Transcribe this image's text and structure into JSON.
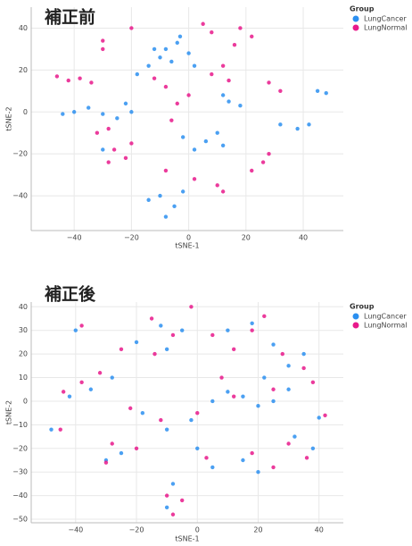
{
  "chart_data": [
    {
      "type": "scatter",
      "title": "補正前",
      "xlabel": "tSNE-1",
      "ylabel": "tSNE-2",
      "legend_title": "Group",
      "grid": true,
      "xlim": [
        -55,
        54
      ],
      "ylim": [
        -56.6,
        50
      ],
      "xticks": [
        {
          "value": -40,
          "label": "−40"
        },
        {
          "value": -20,
          "label": "−20"
        },
        0,
        20,
        40
      ],
      "yticks": [
        {
          "value": -40,
          "label": "−40"
        },
        {
          "value": -20,
          "label": "−20"
        },
        0,
        20,
        40
      ],
      "series": [
        {
          "name": "LungCancer",
          "color": "#2b8ff0",
          "x": [
            -8,
            -4,
            0,
            -10,
            -6,
            2,
            -14,
            -3,
            -18,
            -12,
            -40,
            -35,
            -44,
            -30,
            -25,
            -20,
            -22,
            14,
            18,
            12,
            10,
            6,
            2,
            12,
            -2,
            -10,
            -5,
            -8,
            -14,
            -2,
            32,
            38,
            42,
            45,
            48,
            -30
          ],
          "y": [
            30,
            33,
            28,
            26,
            24,
            22,
            22,
            36,
            18,
            30,
            0,
            2,
            -1,
            -1,
            -3,
            0,
            4,
            5,
            3,
            8,
            -10,
            -14,
            -18,
            -16,
            -12,
            -40,
            -45,
            -50,
            -42,
            -38,
            -6,
            -8,
            -6,
            10,
            9,
            -18
          ]
        },
        {
          "name": "LungNormal",
          "color": "#e8198b",
          "x": [
            -46,
            -42,
            -38,
            -34,
            -26,
            -22,
            -28,
            -20,
            5,
            8,
            18,
            22,
            16,
            8,
            12,
            14,
            -12,
            -8,
            0,
            -4,
            -6,
            -32,
            -28,
            28,
            32,
            26,
            22,
            28,
            10,
            12,
            -20,
            -30,
            -30,
            2,
            -8
          ],
          "y": [
            17,
            15,
            16,
            14,
            -18,
            -22,
            -24,
            -15,
            42,
            38,
            40,
            36,
            32,
            18,
            22,
            15,
            16,
            12,
            8,
            4,
            -4,
            -10,
            -8,
            14,
            10,
            -24,
            -28,
            -20,
            -35,
            -38,
            40,
            34,
            30,
            -32,
            -28
          ]
        }
      ]
    },
    {
      "type": "scatter",
      "title": "補正後",
      "xlabel": "tSNE-1",
      "ylabel": "tSNE-2",
      "legend_title": "Group",
      "grid": true,
      "xlim": [
        -54.6,
        48
      ],
      "ylim": [
        -51.5,
        42
      ],
      "xticks": [
        {
          "value": -40,
          "label": "−40"
        },
        {
          "value": -20,
          "label": "−20"
        },
        0,
        20,
        40
      ],
      "yticks": [
        {
          "value": -50,
          "label": "−50"
        },
        {
          "value": -40,
          "label": "−40"
        },
        {
          "value": -30,
          "label": "−30"
        },
        {
          "value": -20,
          "label": "−20"
        },
        {
          "value": -10,
          "label": "−10"
        },
        0,
        10,
        20,
        30,
        40
      ],
      "series": [
        {
          "name": "LungCancer",
          "color": "#2b8ff0",
          "x": [
            -40,
            -20,
            -12,
            -10,
            -35,
            -42,
            -28,
            -18,
            -10,
            -2,
            5,
            10,
            15,
            20,
            25,
            30,
            22,
            10,
            18,
            25,
            30,
            32,
            38,
            40,
            15,
            20,
            -8,
            -10,
            -25,
            -30,
            0,
            5,
            -5,
            -48,
            35
          ],
          "y": [
            30,
            25,
            32,
            22,
            5,
            2,
            10,
            -5,
            -12,
            -8,
            0,
            4,
            2,
            -2,
            0,
            5,
            10,
            30,
            33,
            24,
            15,
            -15,
            -20,
            -7,
            -25,
            -30,
            -35,
            -45,
            -22,
            -25,
            -20,
            -28,
            30,
            -12,
            20
          ]
        },
        {
          "name": "LungNormal",
          "color": "#e8198b",
          "x": [
            -38,
            -25,
            -15,
            -8,
            -14,
            -38,
            -44,
            -32,
            -22,
            -12,
            0,
            8,
            12,
            25,
            18,
            22,
            28,
            35,
            38,
            30,
            36,
            42,
            18,
            25,
            -10,
            -8,
            -5,
            -28,
            -30,
            -20,
            3,
            -45,
            -2,
            12,
            5
          ],
          "y": [
            32,
            22,
            35,
            28,
            20,
            8,
            4,
            12,
            -3,
            -8,
            -5,
            10,
            2,
            5,
            30,
            36,
            20,
            14,
            8,
            -18,
            -24,
            -6,
            -22,
            -28,
            -40,
            -48,
            -42,
            -18,
            -26,
            -20,
            -24,
            -12,
            40,
            22,
            28
          ]
        }
      ]
    }
  ]
}
